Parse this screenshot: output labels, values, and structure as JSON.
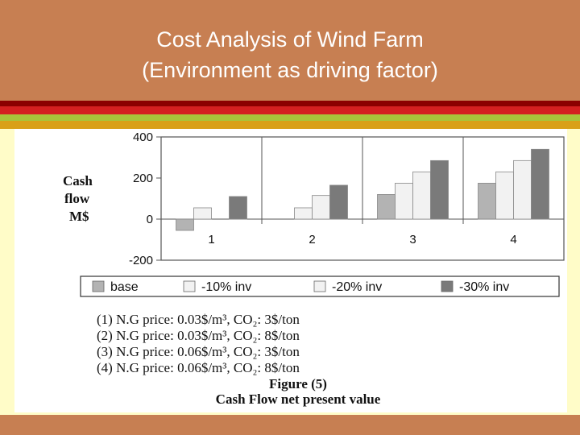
{
  "slide": {
    "title_line1": "Cost Analysis of Wind Farm",
    "title_line2": "(Environment as driving factor)"
  },
  "colors": {
    "background": "#C77F52",
    "stripe_dark_red": "#8B0000",
    "stripe_red": "#D42020",
    "stripe_green": "#A8C43A",
    "stripe_gold": "#D9A018",
    "content_bg": "#FFFCC8"
  },
  "chart_data": {
    "type": "bar",
    "ylabel": "Cash flow M$",
    "xlabel": "",
    "ylim": [
      -200,
      400
    ],
    "yticks": [
      "400",
      "200",
      "0",
      "-200"
    ],
    "categories": [
      "1",
      "2",
      "3",
      "4"
    ],
    "series": [
      {
        "name": "base",
        "color": "#B3B3B3",
        "values": [
          -55,
          null,
          120,
          175
        ]
      },
      {
        "name": "-10% inv",
        "color": "#F2F2F2",
        "values": [
          55,
          55,
          175,
          230
        ]
      },
      {
        "name": "-20% inv",
        "color": "#F2F2F2",
        "values": [
          null,
          115,
          230,
          285
        ]
      },
      {
        "name": "-30% inv",
        "color": "#7A7A7A",
        "values": [
          110,
          165,
          285,
          340
        ]
      }
    ],
    "grid": "vertical separators between categories",
    "legend_position": "bottom"
  },
  "notes": [
    "(1) N.G price: 0.03$/m³, CO₂: 3$/ton",
    "(2) N.G price: 0.03$/m³, CO₂: 8$/ton",
    "(3) N.G price: 0.06$/m³, CO₂: 3$/ton",
    "(4) N.G price: 0.06$/m³, CO₂: 8$/ton"
  ],
  "figure": {
    "number": "Figure (5)",
    "caption": "Cash Flow net present value"
  }
}
